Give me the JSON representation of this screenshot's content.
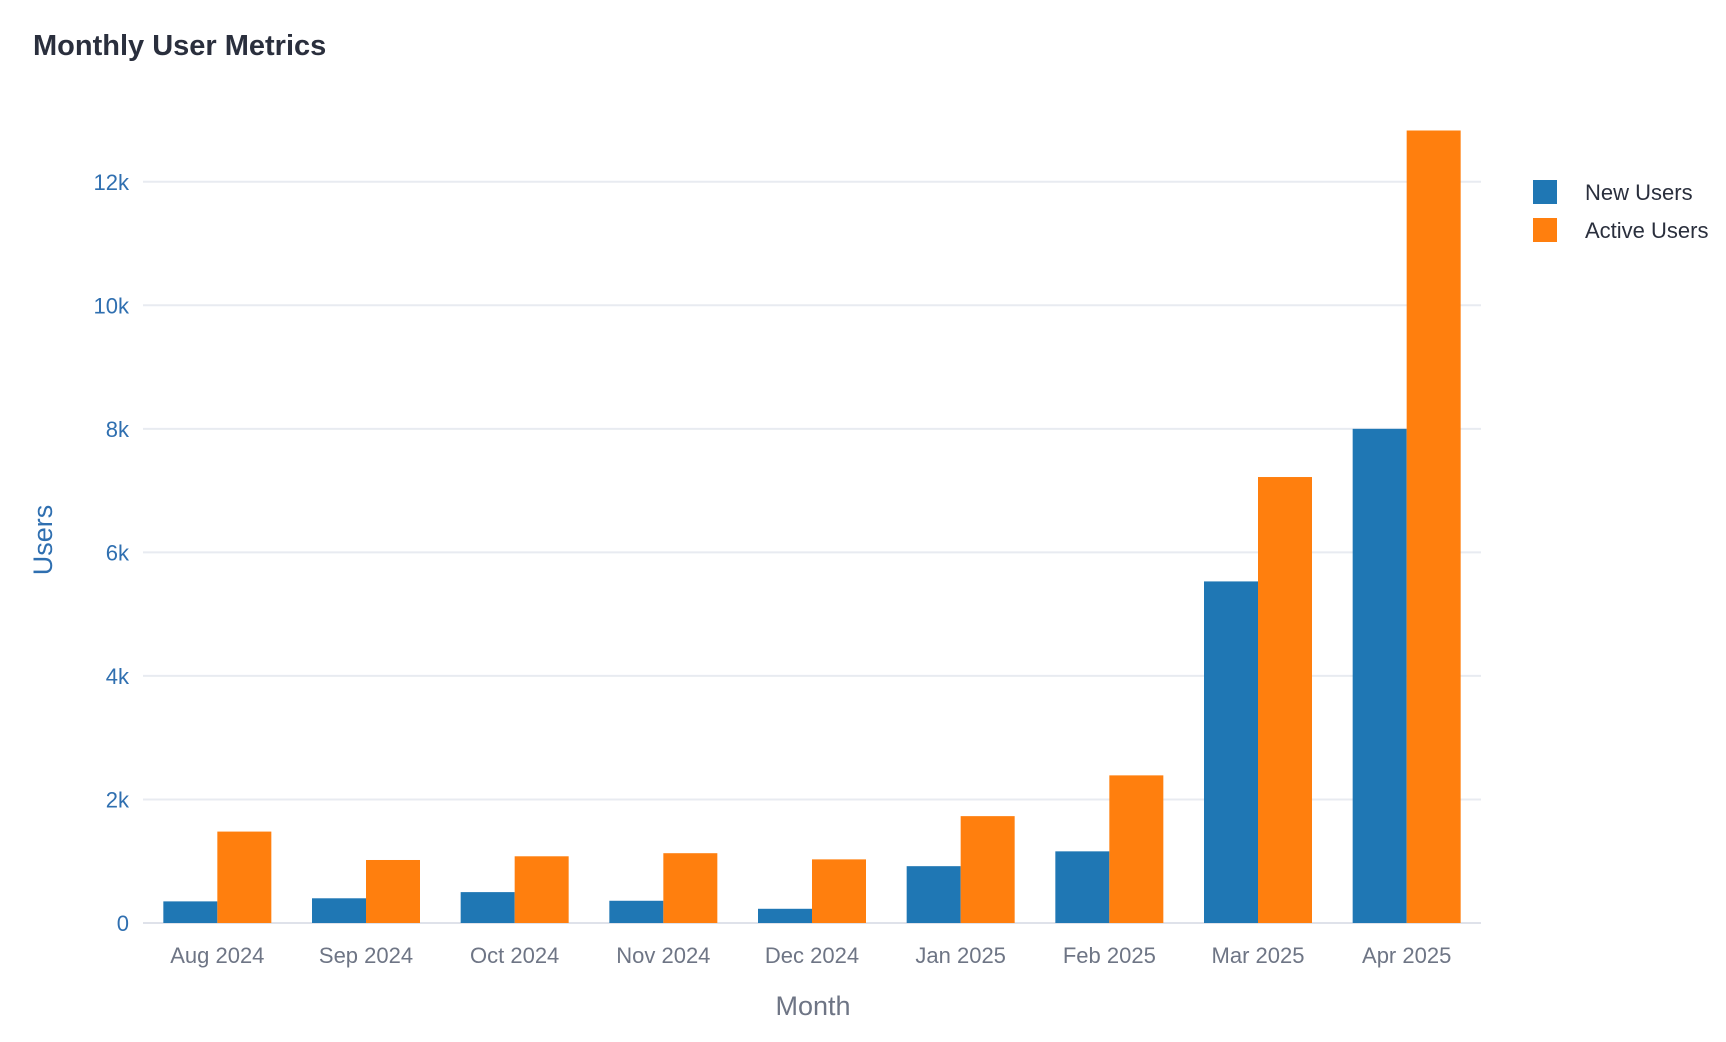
{
  "chart_data": {
    "type": "bar",
    "title": "Monthly User Metrics",
    "xlabel": "Month",
    "ylabel": "Users",
    "categories": [
      "Aug 2024",
      "Sep 2024",
      "Oct 2024",
      "Nov 2024",
      "Dec 2024",
      "Jan 2025",
      "Feb 2025",
      "Mar 2025",
      "Apr 2025"
    ],
    "series": [
      {
        "name": "New Users",
        "color": "#1f77b4",
        "values": [
          350,
          400,
          500,
          360,
          230,
          920,
          1160,
          5530,
          8000
        ]
      },
      {
        "name": "Active Users",
        "color": "#ff7f0e",
        "values": [
          1480,
          1020,
          1080,
          1130,
          1030,
          1730,
          2390,
          7220,
          12830
        ]
      }
    ],
    "ylim": [
      0,
      13000
    ],
    "yticks": [
      0,
      2000,
      4000,
      6000,
      8000,
      10000,
      12000
    ],
    "ytick_labels": [
      "0",
      "2k",
      "4k",
      "6k",
      "8k",
      "10k",
      "12k"
    ],
    "grid": true,
    "legend_position": "top-right"
  }
}
